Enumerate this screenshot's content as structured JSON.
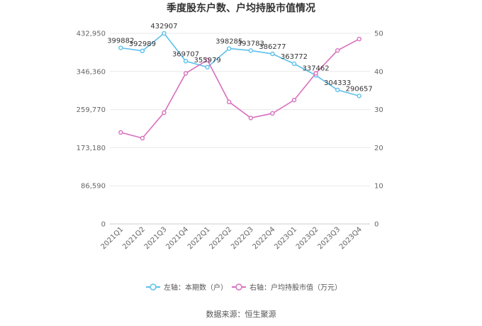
{
  "colors": {
    "left": "#5bc0eb",
    "right": "#d86fbd"
  },
  "chart_data": {
    "type": "line",
    "title": "季度股东户数、户均持股市值情况",
    "categories": [
      "2021Q1",
      "2021Q2",
      "2021Q3",
      "2021Q4",
      "2022Q1",
      "2022Q2",
      "2022Q3",
      "2022Q4",
      "2023Q1",
      "2023Q2",
      "2023Q3",
      "2023Q4"
    ],
    "left_axis": {
      "ylim": [
        0,
        432950
      ],
      "ticks": [
        "0",
        "86,590",
        "173,180",
        "259,770",
        "346,360",
        "432,950"
      ],
      "tick_values": [
        0,
        86590,
        173180,
        259770,
        346360,
        432950
      ]
    },
    "right_axis": {
      "ylim": [
        0,
        50
      ],
      "ticks": [
        "0",
        "10",
        "20",
        "30",
        "40",
        "50"
      ],
      "tick_values": [
        0,
        10,
        20,
        30,
        40,
        50
      ]
    },
    "series": [
      {
        "name": "左轴：本期数（户）",
        "axis": "left",
        "values": [
          399882,
          392989,
          432907,
          369707,
          355979,
          398285,
          393783,
          386277,
          363772,
          337462,
          304333,
          290657
        ],
        "labels": [
          "399882",
          "392989",
          "432907",
          "369707",
          "355979",
          "398285",
          "393783",
          "386277",
          "363772",
          "337462",
          "304333",
          "290657"
        ]
      },
      {
        "name": "右轴：户均持股市值（万元）",
        "axis": "right",
        "values": [
          24.0,
          22.5,
          29.2,
          39.5,
          43.0,
          32.0,
          27.8,
          29.0,
          32.5,
          39.5,
          45.5,
          48.5
        ]
      }
    ]
  },
  "footer": {
    "source": "数据来源：恒生聚源"
  }
}
